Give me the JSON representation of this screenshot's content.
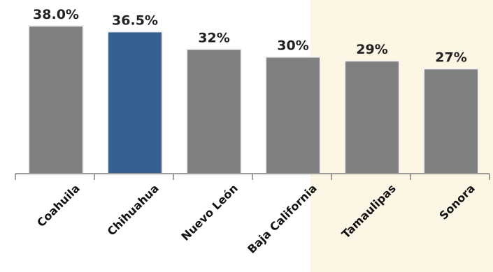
{
  "chart_data": {
    "type": "bar",
    "categories": [
      "Coahuila",
      "Chihuahua",
      "Nuevo León",
      "Baja California",
      "Tamaulipas",
      "Sonora"
    ],
    "values": [
      38.0,
      36.5,
      32,
      30,
      29,
      27
    ],
    "value_labels": [
      "38.0%",
      "36.5%",
      "32%",
      "30%",
      "29%",
      "27%"
    ],
    "title": "",
    "xlabel": "",
    "ylabel": "",
    "ylim": [
      0,
      38
    ],
    "grid": false,
    "colors": {
      "default_bar": "#808080",
      "highlight_bar": "#365f91",
      "highlight_region_background": "#fdf6e5",
      "axis": "#7f7f7f"
    },
    "highlighted_category": "Chihuahua",
    "shaded_categories": [
      "Tamaulipas",
      "Sonora"
    ]
  }
}
